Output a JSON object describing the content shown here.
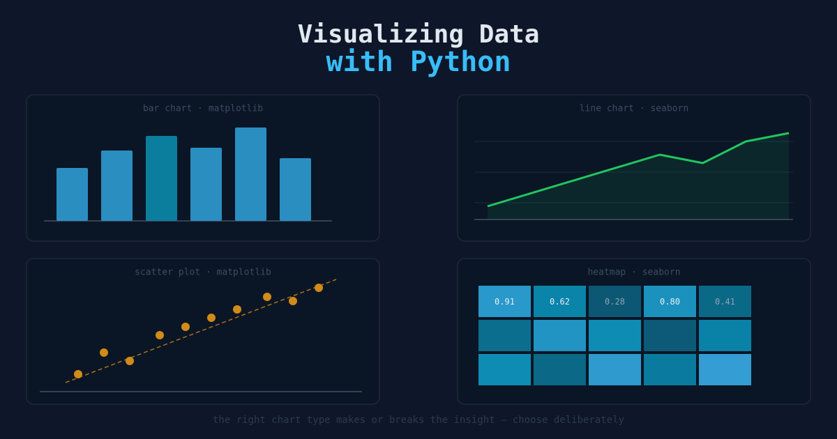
{
  "header": {
    "title": "Visualizing Data",
    "subtitle": "with Python"
  },
  "chart_data": [
    {
      "type": "bar",
      "title": "bar chart · matplotlib",
      "values": [
        76,
        101,
        122,
        105,
        134,
        90
      ],
      "colors": [
        "#2b8ec1",
        "#2b8ec1",
        "#0b7e9e",
        "#2b8ec1",
        "#2b8ec1",
        "#2b8ec1"
      ],
      "ylim": [
        0,
        140
      ]
    },
    {
      "type": "line",
      "title": "line chart · seaborn",
      "x": [
        0,
        4,
        5,
        6,
        7
      ],
      "values": [
        19,
        93,
        81,
        112,
        124
      ],
      "color": "#22c55e",
      "xlim": [
        0,
        7
      ],
      "ylim": [
        0,
        140
      ],
      "grid": true
    },
    {
      "type": "scatter",
      "title": "scatter plot · matplotlib",
      "x": [
        55,
        92,
        129,
        172,
        209,
        246,
        283,
        326,
        363,
        400
      ],
      "values": [
        25,
        56,
        44,
        81,
        93,
        106,
        118,
        136,
        130,
        149
      ],
      "color": "#d18b18",
      "xlim": [
        0,
        462
      ],
      "ylim": [
        0,
        170
      ],
      "trendline": {
        "x": [
          37,
          425
        ],
        "y": [
          13,
          161
        ],
        "style": "dashed"
      }
    },
    {
      "type": "heatmap",
      "title": "heatmap · seaborn",
      "values": [
        [
          0.91,
          0.62,
          0.28,
          0.8,
          0.41
        ],
        [
          0.45,
          0.85,
          0.7,
          0.3,
          0.6
        ],
        [
          0.7,
          0.4,
          0.95,
          0.55,
          1.0
        ]
      ],
      "value_labels": [
        [
          "0.91",
          "0.62",
          "0.28",
          "0.80",
          "0.41"
        ]
      ],
      "cmap": [
        "#12304a",
        "#0b5f7c",
        "#0a8ab0",
        "#349dd3"
      ]
    }
  ],
  "footer": "the right chart type makes or breaks the insight — choose deliberately"
}
